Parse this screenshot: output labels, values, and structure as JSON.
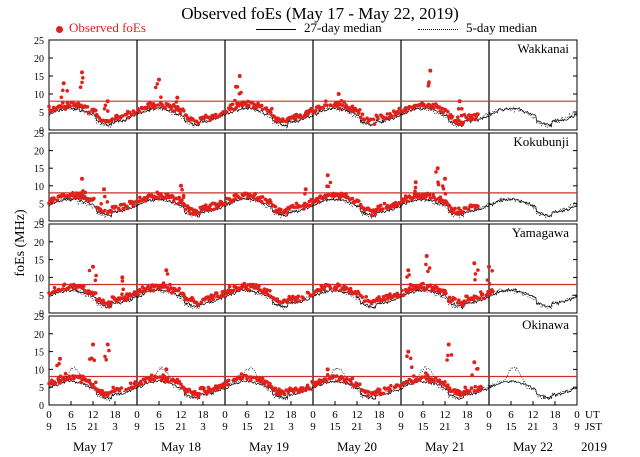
{
  "chart_data": {
    "type": "scatter",
    "title": "Observed foEs (May 17 - May 22, 2019)",
    "ylabel": "foEs (MHz)",
    "legend": {
      "observed": "Observed foEs",
      "median27": "27-day median",
      "median5": "5-day median"
    },
    "ylim": [
      0,
      25
    ],
    "yticks": [
      "0",
      "5",
      "10",
      "15",
      "20",
      "25"
    ],
    "reference_level_mhz": 8,
    "x_axis": {
      "ut_label": "UT",
      "jst_label": "JST",
      "ut_ticks": [
        "0",
        "6",
        "12",
        "18",
        "0",
        "6",
        "12",
        "18",
        "0",
        "6",
        "12",
        "18",
        "0",
        "6",
        "12",
        "18",
        "0",
        "6",
        "12",
        "18",
        "0",
        "6",
        "12",
        "18",
        "0"
      ],
      "jst_ticks": [
        "9",
        "15",
        "21",
        "3",
        "9",
        "15",
        "21",
        "3",
        "9",
        "15",
        "21",
        "3",
        "9",
        "15",
        "21",
        "3",
        "9",
        "15",
        "21",
        "3",
        "9",
        "15",
        "21",
        "3",
        "9"
      ],
      "days": [
        "May 17",
        "May 18",
        "May 19",
        "May 20",
        "May 21",
        "May 22"
      ],
      "year": "2019"
    },
    "colors": {
      "observed": "#e0201b",
      "reference": "#c9302c",
      "axis": "#000000"
    },
    "stations": [
      {
        "name": "Wakkanai",
        "observed_peaks": [
          {
            "hour": 4,
            "mhz": 13
          },
          {
            "hour": 9,
            "mhz": 16
          },
          {
            "hour": 16,
            "mhz": 8
          },
          {
            "hour": 30,
            "mhz": 14
          },
          {
            "hour": 35,
            "mhz": 9
          },
          {
            "hour": 51,
            "mhz": 12
          },
          {
            "hour": 52,
            "mhz": 15
          },
          {
            "hour": 79,
            "mhz": 10
          },
          {
            "hour": 104,
            "mhz": 16.5
          },
          {
            "hour": 112,
            "mhz": 8
          }
        ],
        "observed_end_hour": 117
      },
      {
        "name": "Kokubunji",
        "observed_peaks": [
          {
            "hour": 9,
            "mhz": 12
          },
          {
            "hour": 15,
            "mhz": 9
          },
          {
            "hour": 36,
            "mhz": 10
          },
          {
            "hour": 70,
            "mhz": 9
          },
          {
            "hour": 76,
            "mhz": 13
          },
          {
            "hour": 100,
            "mhz": 11
          },
          {
            "hour": 106,
            "mhz": 15
          },
          {
            "hour": 108,
            "mhz": 12
          }
        ],
        "observed_end_hour": 117
      },
      {
        "name": "Yamagawa",
        "observed_peaks": [
          {
            "hour": 12,
            "mhz": 13
          },
          {
            "hour": 20,
            "mhz": 10
          },
          {
            "hour": 32,
            "mhz": 12
          },
          {
            "hour": 98,
            "mhz": 12
          },
          {
            "hour": 103,
            "mhz": 16
          },
          {
            "hour": 116,
            "mhz": 14
          },
          {
            "hour": 120,
            "mhz": 13
          }
        ],
        "observed_end_hour": 121
      },
      {
        "name": "Okinawa",
        "observed_peaks": [
          {
            "hour": 3,
            "mhz": 13
          },
          {
            "hour": 12,
            "mhz": 17
          },
          {
            "hour": 16,
            "mhz": 17
          },
          {
            "hour": 32,
            "mhz": 10
          },
          {
            "hour": 76,
            "mhz": 10
          },
          {
            "hour": 98,
            "mhz": 15
          },
          {
            "hour": 109,
            "mhz": 17
          },
          {
            "hour": 116,
            "mhz": 12
          }
        ],
        "observed_end_hour": 118
      }
    ]
  }
}
